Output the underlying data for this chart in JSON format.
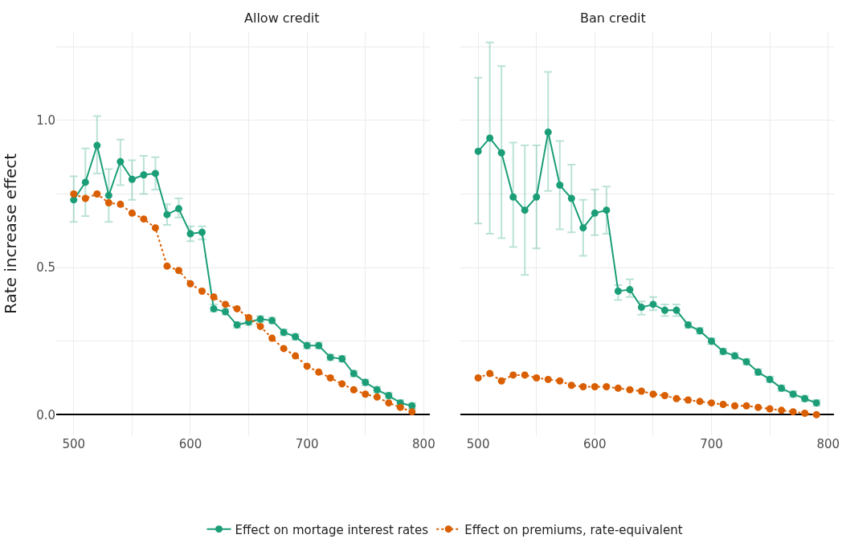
{
  "chart_data": [
    {
      "type": "line",
      "title": "Allow credit",
      "ylabel": "Rate increase effect",
      "x": [
        500,
        510,
        520,
        530,
        540,
        550,
        560,
        570,
        580,
        590,
        600,
        610,
        620,
        630,
        640,
        650,
        660,
        670,
        680,
        690,
        700,
        710,
        720,
        730,
        740,
        750,
        760,
        770,
        780,
        790
      ],
      "series": [
        {
          "name": "Effect on mortage interest rates",
          "color": "#1b9e77",
          "line_style": "solid",
          "values": [
            0.73,
            0.79,
            0.915,
            0.745,
            0.86,
            0.8,
            0.815,
            0.82,
            0.68,
            0.7,
            0.615,
            0.62,
            0.36,
            0.35,
            0.305,
            0.315,
            0.325,
            0.32,
            0.28,
            0.265,
            0.235,
            0.235,
            0.195,
            0.19,
            0.14,
            0.11,
            0.085,
            0.065,
            0.04,
            0.03
          ],
          "errors": [
            [
              0.655,
              0.81
            ],
            [
              0.675,
              0.905
            ],
            [
              0.82,
              1.015
            ],
            [
              0.655,
              0.835
            ],
            [
              0.78,
              0.935
            ],
            [
              0.73,
              0.865
            ],
            [
              0.75,
              0.88
            ],
            [
              0.765,
              0.875
            ],
            [
              0.645,
              0.715
            ],
            [
              0.67,
              0.735
            ],
            [
              0.59,
              0.64
            ],
            [
              0.595,
              0.64
            ],
            [
              0.35,
              0.375
            ],
            0.01,
            0.01,
            0.01,
            0.01,
            0.01,
            0.01,
            0.01,
            0.01,
            0.01,
            0.01,
            0.01,
            0.01,
            0.01,
            0.01,
            0.01,
            0.01,
            0.01
          ]
        },
        {
          "name": "Effect on premiums, rate-equivalent",
          "color": "#d95f02",
          "line_style": "dotted",
          "values": [
            0.75,
            0.735,
            0.75,
            0.72,
            0.715,
            0.685,
            0.665,
            0.635,
            0.505,
            0.49,
            0.445,
            0.42,
            0.4,
            0.375,
            0.36,
            0.33,
            0.3,
            0.26,
            0.225,
            0.2,
            0.165,
            0.145,
            0.125,
            0.105,
            0.085,
            0.07,
            0.06,
            0.04,
            0.025,
            0.01
          ]
        }
      ],
      "xlim": [
        485,
        805
      ],
      "xticks": [
        500,
        {
          "value": 550,
          "label": null
        },
        600,
        {
          "value": 650,
          "label": null
        },
        700,
        {
          "value": 750,
          "label": null
        },
        800
      ],
      "ylim": [
        -0.07,
        1.3
      ],
      "yticks": [
        {
          "value": 0,
          "label": "0.0"
        },
        {
          "value": 0.25,
          "label": null
        },
        0.5,
        {
          "value": 0.75,
          "label": null
        },
        {
          "value": 1,
          "label": "1.0"
        },
        {
          "value": 1.25,
          "label": null
        }
      ],
      "grid": true,
      "legend": "bottom",
      "marker": "circle"
    },
    {
      "type": "line",
      "title": "Ban credit",
      "x": [
        500,
        510,
        520,
        530,
        540,
        550,
        560,
        570,
        580,
        590,
        600,
        610,
        620,
        630,
        640,
        650,
        660,
        670,
        680,
        690,
        700,
        710,
        720,
        730,
        740,
        750,
        760,
        770,
        780,
        790
      ],
      "series": [
        {
          "color": "#1b9e77",
          "line_style": "solid",
          "values": [
            0.895,
            0.94,
            0.89,
            0.74,
            0.695,
            0.74,
            0.96,
            0.78,
            0.735,
            0.635,
            0.685,
            0.695,
            0.42,
            0.425,
            0.365,
            0.375,
            0.355,
            0.355,
            0.305,
            0.285,
            0.25,
            0.215,
            0.2,
            0.18,
            0.145,
            0.12,
            0.09,
            0.07,
            0.055,
            0.04
          ],
          "errors": [
            [
              0.65,
              1.145
            ],
            [
              0.615,
              1.265
            ],
            [
              0.6,
              1.185
            ],
            [
              0.57,
              0.925
            ],
            [
              0.475,
              0.915
            ],
            [
              0.565,
              0.915
            ],
            [
              0.76,
              1.165
            ],
            [
              0.63,
              0.93
            ],
            [
              0.62,
              0.85
            ],
            [
              0.54,
              0.73
            ],
            [
              0.61,
              0.765
            ],
            [
              0.615,
              0.775
            ],
            [
              0.39,
              0.44
            ],
            [
              0.4,
              0.46
            ],
            [
              0.34,
              0.385
            ],
            [
              0.355,
              0.4
            ],
            [
              0.335,
              0.375
            ],
            [
              0.335,
              0.375
            ],
            0.01,
            0.01,
            0.01,
            0.01,
            0.01,
            0.01,
            0.01,
            0.01,
            0.01,
            0.01,
            0.01,
            0.01
          ]
        },
        {
          "color": "#d95f02",
          "line_style": "dotted",
          "values": [
            0.125,
            0.14,
            0.115,
            0.135,
            0.135,
            0.125,
            0.12,
            0.115,
            0.1,
            0.095,
            0.095,
            0.095,
            0.09,
            0.085,
            0.08,
            0.07,
            0.065,
            0.055,
            0.05,
            0.045,
            0.04,
            0.035,
            0.03,
            0.03,
            0.025,
            0.02,
            0.015,
            0.01,
            0.005,
            0.0
          ]
        }
      ],
      "xlim": [
        485,
        805
      ],
      "xticks": [
        500,
        {
          "value": 550,
          "label": null
        },
        600,
        {
          "value": 650,
          "label": null
        },
        700,
        {
          "value": 750,
          "label": null
        },
        800
      ],
      "ylim": [
        -0.07,
        1.3
      ],
      "yticks": [
        0,
        0.25,
        0.5,
        0.75,
        1,
        1.25
      ],
      "grid": true,
      "legend": "bottom",
      "marker": "circle",
      "tick_labels": "x"
    }
  ]
}
